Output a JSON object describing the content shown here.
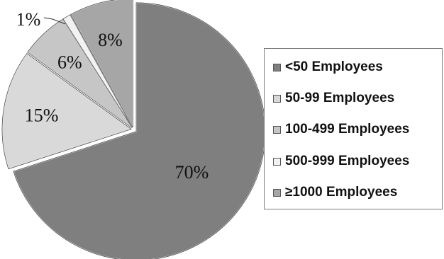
{
  "chart_data": {
    "type": "pie",
    "title": "",
    "slices": [
      {
        "label": "<50 Employees",
        "value": 70,
        "display": "70%",
        "color": "#7f7f7f"
      },
      {
        "label": "50-99 Employees",
        "value": 15,
        "display": "15%",
        "color": "#d9d9d9"
      },
      {
        "label": "100-499 Employees",
        "value": 6,
        "display": "6%",
        "color": "#c6c6c6"
      },
      {
        "label": "500-999 Employees",
        "value": 1,
        "display": "1%",
        "color": "#f2f2f2"
      },
      {
        "label": "≥1000 Employees",
        "value": 8,
        "display": "8%",
        "color": "#a6a6a6"
      }
    ],
    "start_angle_deg": 0,
    "direction": "clockwise",
    "legend_position": "right",
    "exploded_slice": "<50 Employees"
  }
}
